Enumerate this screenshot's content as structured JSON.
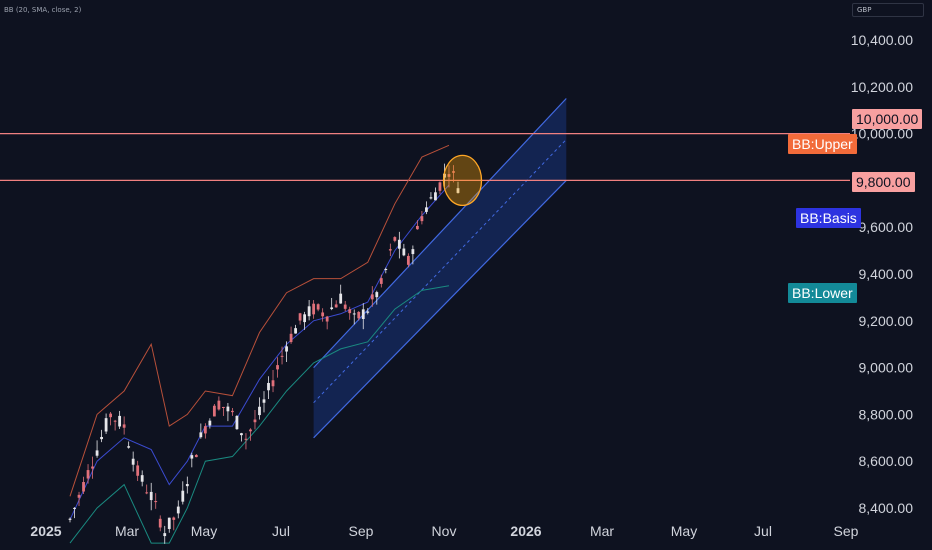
{
  "indicator": {
    "label": "BB (20, SMA, close, 2)"
  },
  "currency": {
    "label": "GBP"
  },
  "chart_data": {
    "type": "candlestick",
    "y_axis": {
      "ticks": [
        8400,
        8600,
        8800,
        9000,
        9200,
        9400,
        9600,
        9800,
        10000,
        10200,
        10400
      ],
      "tick_labels": [
        "8,400.00",
        "8,600.00",
        "8,800.00",
        "9,000.00",
        "9,200.00",
        "9,400.00",
        "9,600.00",
        "9,800.00",
        "10,000.00",
        "10,200.00",
        "10,400.00"
      ]
    },
    "x_axis": {
      "tick_labels": [
        "2025",
        "Mar",
        "May",
        "Jul",
        "Sep",
        "Nov",
        "2026",
        "Mar",
        "May",
        "Jul",
        "Sep"
      ],
      "bold": [
        "2025",
        "2026"
      ]
    },
    "horizontal_lines": [
      {
        "value": 10000,
        "label": "10,000.00",
        "color": "#f08080"
      },
      {
        "value": 9800,
        "label": "9,800.00",
        "color": "#f08080"
      }
    ],
    "bollinger_tags": [
      {
        "name": "BB:Upper",
        "color": "#f26b3a"
      },
      {
        "name": "BB:Basis",
        "color": "#2d33e0"
      },
      {
        "name": "BB:Lower",
        "color": "#138a98"
      }
    ],
    "price_path": [
      [
        0,
        8350
      ],
      [
        3,
        8500
      ],
      [
        6,
        8650
      ],
      [
        9,
        8800
      ],
      [
        12,
        8750
      ],
      [
        15,
        8550
      ],
      [
        18,
        8450
      ],
      [
        21,
        8300
      ],
      [
        24,
        8380
      ],
      [
        27,
        8600
      ],
      [
        30,
        8750
      ],
      [
        33,
        8850
      ],
      [
        36,
        8800
      ],
      [
        39,
        8700
      ],
      [
        42,
        8800
      ],
      [
        45,
        8950
      ],
      [
        48,
        9100
      ],
      [
        51,
        9200
      ],
      [
        54,
        9250
      ],
      [
        57,
        9230
      ],
      [
        60,
        9300
      ],
      [
        63,
        9200
      ],
      [
        66,
        9250
      ],
      [
        69,
        9350
      ],
      [
        72,
        9550
      ],
      [
        75,
        9450
      ],
      [
        78,
        9650
      ],
      [
        81,
        9750
      ],
      [
        84,
        9850
      ],
      [
        86,
        9780
      ]
    ],
    "bb_upper": [
      [
        0,
        8450
      ],
      [
        6,
        8800
      ],
      [
        12,
        8900
      ],
      [
        18,
        9100
      ],
      [
        22,
        8750
      ],
      [
        26,
        8800
      ],
      [
        30,
        8900
      ],
      [
        36,
        8880
      ],
      [
        42,
        9150
      ],
      [
        48,
        9320
      ],
      [
        54,
        9380
      ],
      [
        60,
        9380
      ],
      [
        66,
        9450
      ],
      [
        72,
        9700
      ],
      [
        78,
        9900
      ],
      [
        84,
        9950
      ]
    ],
    "bb_basis": [
      [
        0,
        8350
      ],
      [
        6,
        8600
      ],
      [
        12,
        8700
      ],
      [
        18,
        8650
      ],
      [
        22,
        8500
      ],
      [
        26,
        8600
      ],
      [
        30,
        8750
      ],
      [
        36,
        8750
      ],
      [
        42,
        8950
      ],
      [
        48,
        9100
      ],
      [
        54,
        9200
      ],
      [
        60,
        9230
      ],
      [
        66,
        9280
      ],
      [
        72,
        9500
      ],
      [
        78,
        9650
      ],
      [
        84,
        9780
      ]
    ],
    "bb_lower": [
      [
        0,
        8250
      ],
      [
        6,
        8400
      ],
      [
        12,
        8500
      ],
      [
        18,
        8250
      ],
      [
        22,
        8250
      ],
      [
        26,
        8400
      ],
      [
        30,
        8600
      ],
      [
        36,
        8620
      ],
      [
        42,
        8750
      ],
      [
        48,
        8900
      ],
      [
        54,
        9020
      ],
      [
        60,
        9080
      ],
      [
        66,
        9110
      ],
      [
        72,
        9250
      ],
      [
        78,
        9330
      ],
      [
        84,
        9350
      ]
    ],
    "channel": {
      "upper_line": [
        [
          54,
          9000
        ],
        [
          110,
          10150
        ]
      ],
      "lower_line": [
        [
          54,
          8700
        ],
        [
          110,
          9800
        ]
      ],
      "mid_line": [
        [
          54,
          8850
        ],
        [
          110,
          9975
        ]
      ]
    },
    "highlight_circle": {
      "x": 87,
      "y": 9800
    }
  }
}
